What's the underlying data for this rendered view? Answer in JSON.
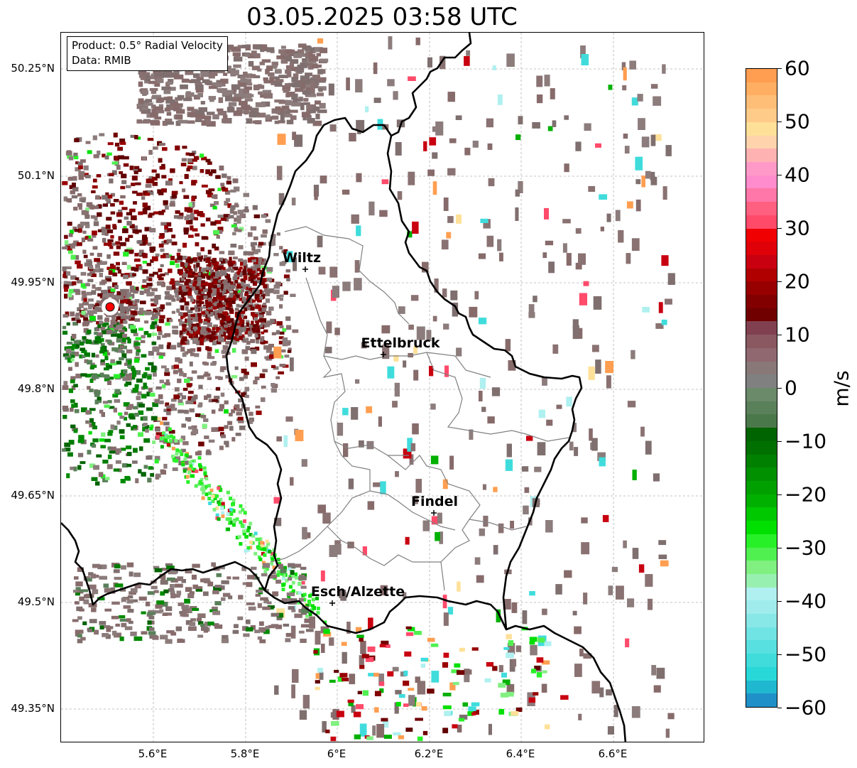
{
  "title": "03.05.2025 03:58 UTC",
  "info": {
    "product": "Product: 0.5° Radial Velocity",
    "source": "Data: RMIB"
  },
  "axes": {
    "y_ticks": [
      "50.25°N",
      "50.1°N",
      "49.95°N",
      "49.8°N",
      "49.65°N",
      "49.5°N",
      "49.35°N"
    ],
    "x_ticks": [
      "5.6°E",
      "5.8°E",
      "6°E",
      "6.2°E",
      "6.4°E",
      "6.6°E"
    ]
  },
  "cities": [
    {
      "name": "Wiltz"
    },
    {
      "name": "Ettelbruck"
    },
    {
      "name": "Findel"
    },
    {
      "name": "Esch/Alzette"
    }
  ],
  "colorbar": {
    "label": "m/s",
    "min": -60,
    "max": 60,
    "ticks": [
      "60",
      "50",
      "40",
      "30",
      "20",
      "10",
      "0",
      "−10",
      "−20",
      "−30",
      "−40",
      "−50",
      "−60"
    ],
    "colors_top_to_bottom": [
      "#ff9e50",
      "#ffae62",
      "#ffbe78",
      "#ffcb88",
      "#ffe098",
      "#ffd3ac",
      "#ffb2b2",
      "#ff9ac8",
      "#ff8ccc",
      "#ff76a8",
      "#ff6080",
      "#ff4a6a",
      "#f00000",
      "#e00008",
      "#c80010",
      "#b00000",
      "#980000",
      "#820000",
      "#700000",
      "#804050",
      "#8a5860",
      "#906870",
      "#887878",
      "#808080",
      "#6a8a6a",
      "#5a805a",
      "#4a784a",
      "#006400",
      "#007000",
      "#008000",
      "#009000",
      "#00a000",
      "#00b000",
      "#00c800",
      "#00e000",
      "#28f028",
      "#50f050",
      "#80f080",
      "#98f0b0",
      "#b0f0f0",
      "#a0ecec",
      "#88e8e8",
      "#70e4e4",
      "#58e0e0",
      "#40dcdc",
      "#28d8d8",
      "#20b8d0",
      "#2090c8"
    ]
  },
  "map_style": {
    "border_color": "#000000",
    "canton_color": "#808080",
    "radar_site_color": "#ff0000"
  }
}
